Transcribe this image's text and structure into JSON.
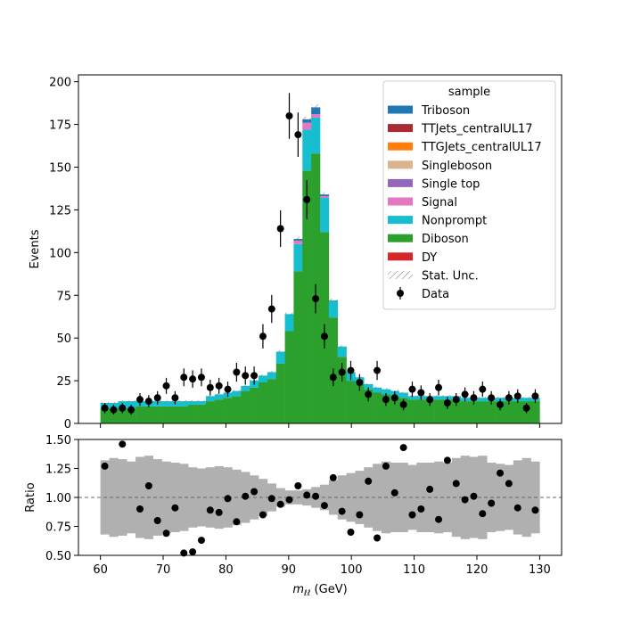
{
  "chart_data": [
    {
      "type": "bar",
      "panel": "main",
      "ylabel": "Events",
      "xlim": [
        56.5,
        133.5
      ],
      "ylim": [
        0,
        204
      ],
      "yticks": [
        0,
        25,
        50,
        75,
        100,
        125,
        150,
        175,
        200
      ],
      "bin_width": 1.4,
      "bin_start": 60,
      "legend": {
        "title": "sample",
        "placement": "top-right",
        "entries": [
          {
            "label": "Triboson",
            "color": "#1f77b4",
            "kind": "patch"
          },
          {
            "label": "TTJets_centralUL17",
            "color": "#ab2b34",
            "kind": "patch"
          },
          {
            "label": "TTGJets_centralUL17",
            "color": "#ff7f0e",
            "kind": "patch"
          },
          {
            "label": "Singleboson",
            "color": "#d9b48c",
            "kind": "patch"
          },
          {
            "label": "Single top",
            "color": "#9467bd",
            "kind": "patch"
          },
          {
            "label": "Signal",
            "color": "#e377c2",
            "kind": "patch"
          },
          {
            "label": "Nonprompt",
            "color": "#17becf",
            "kind": "patch"
          },
          {
            "label": "Diboson",
            "color": "#2ca02c",
            "kind": "patch"
          },
          {
            "label": "DY",
            "color": "#d62728",
            "kind": "patch"
          },
          {
            "label": "Stat. Unc.",
            "color": "#888888",
            "kind": "hatch"
          },
          {
            "label": "Data",
            "color": "#000000",
            "kind": "errorbar"
          }
        ]
      },
      "stack_colors": {
        "diboson": "#2ca02c",
        "nonprompt": "#17becf",
        "signal": "#e377c2",
        "triboson": "#1f77b4"
      },
      "diboson": [
        9,
        9,
        9,
        9,
        10,
        10,
        10,
        10,
        10,
        10,
        11,
        11,
        13,
        14,
        15,
        16,
        19,
        21,
        24,
        26,
        35,
        54,
        89,
        148,
        158,
        112,
        62,
        39,
        25,
        23,
        20,
        18,
        17,
        16,
        15,
        14,
        14,
        14,
        14,
        14,
        14,
        13,
        13,
        13,
        13,
        13,
        13,
        13,
        13,
        13
      ],
      "nonprompt": [
        3,
        3,
        4,
        4,
        3,
        3,
        3,
        3,
        3,
        3,
        2,
        2,
        3,
        3,
        3,
        3,
        3,
        4,
        4,
        4,
        7,
        10,
        16,
        24,
        21,
        20,
        10,
        6,
        5,
        4,
        3,
        3,
        3,
        3,
        3,
        2,
        2,
        2,
        2,
        2,
        2,
        2,
        2,
        2,
        2,
        2,
        2,
        2,
        2,
        2
      ],
      "signal": [
        0,
        0,
        0,
        0,
        0,
        0,
        0,
        0,
        0,
        0,
        0,
        0,
        0,
        0,
        0,
        0,
        0,
        0,
        0,
        0,
        0,
        0,
        2,
        4,
        2,
        1,
        0,
        0,
        0,
        0,
        0,
        0,
        0,
        0,
        0,
        0,
        0,
        0,
        0,
        0,
        0,
        0,
        0,
        0,
        0,
        0,
        0,
        0,
        0,
        0
      ],
      "triboson": [
        0,
        0,
        0,
        0,
        0,
        0,
        0,
        0,
        0,
        0,
        0,
        0,
        0,
        0,
        0,
        0,
        0,
        0,
        0,
        0,
        0,
        0,
        1,
        2,
        4,
        1,
        0,
        0,
        0,
        0,
        0,
        0,
        0,
        0,
        0,
        0,
        0,
        0,
        0,
        0,
        0,
        0,
        0,
        0,
        0,
        0,
        0,
        0,
        0,
        0
      ],
      "data_x": [
        60.7,
        62.1,
        63.5,
        64.9,
        66.3,
        67.7,
        69.1,
        70.5,
        71.9,
        73.3,
        74.7,
        76.1,
        77.5,
        78.9,
        80.3,
        81.7,
        83.1,
        84.5,
        85.9,
        87.3,
        88.7,
        90.1,
        91.5,
        92.9,
        94.3,
        95.7,
        97.1,
        98.5,
        99.9,
        101.3,
        102.7,
        104.1,
        105.5,
        106.9,
        108.3,
        109.7,
        111.1,
        112.5,
        113.9,
        115.3,
        116.7,
        118.1,
        119.5,
        120.9,
        122.3,
        123.7,
        125.1,
        126.5,
        127.9,
        129.3
      ],
      "data_y": [
        9,
        8,
        9,
        8,
        14,
        13,
        15,
        22,
        15,
        27,
        26,
        27,
        21,
        22,
        20,
        30,
        28,
        28,
        51,
        67,
        114,
        180,
        169,
        131,
        73,
        51,
        27,
        30,
        31,
        24,
        17,
        31,
        14,
        15,
        11,
        20,
        18,
        14,
        21,
        12,
        14,
        17,
        15,
        20,
        15,
        11,
        15,
        16,
        9,
        16
      ]
    },
    {
      "type": "scatter",
      "panel": "ratio",
      "xlabel": "m_{ℓℓ} (GeV)",
      "ylabel": "Ratio",
      "xlim": [
        56.5,
        133.5
      ],
      "ylim": [
        0.5,
        1.5
      ],
      "yticks": [
        0.5,
        0.75,
        1.0,
        1.25,
        1.5
      ],
      "ytick_labels": [
        "0.50",
        "0.75",
        "1.00",
        "1.25",
        "1.50"
      ],
      "xticks": [
        60,
        70,
        80,
        90,
        100,
        110,
        120,
        130
      ],
      "reference_line": 1.0,
      "band_color": "#b0b0b0",
      "band_half_width": [
        0.32,
        0.34,
        0.33,
        0.31,
        0.35,
        0.36,
        0.33,
        0.31,
        0.3,
        0.29,
        0.26,
        0.25,
        0.26,
        0.27,
        0.26,
        0.24,
        0.22,
        0.19,
        0.16,
        0.12,
        0.08,
        0.06,
        0.06,
        0.07,
        0.09,
        0.11,
        0.15,
        0.19,
        0.21,
        0.23,
        0.26,
        0.29,
        0.31,
        0.3,
        0.3,
        0.28,
        0.3,
        0.3,
        0.31,
        0.3,
        0.34,
        0.36,
        0.35,
        0.36,
        0.3,
        0.29,
        0.28,
        0.32,
        0.34,
        0.31
      ],
      "values": [
        1.27,
        null,
        1.46,
        null,
        0.9,
        1.1,
        0.8,
        0.69,
        0.91,
        0.52,
        0.53,
        0.63,
        0.89,
        0.87,
        0.99,
        0.79,
        1.01,
        1.05,
        0.85,
        0.99,
        0.94,
        0.98,
        1.1,
        1.02,
        1.01,
        0.93,
        1.17,
        0.88,
        0.7,
        0.85,
        1.14,
        0.65,
        1.27,
        1.04,
        1.43,
        0.85,
        0.9,
        1.07,
        0.81,
        1.32,
        1.12,
        0.98,
        1.01,
        0.86,
        0.95,
        1.21,
        1.12,
        0.91,
        null,
        0.89
      ]
    }
  ]
}
